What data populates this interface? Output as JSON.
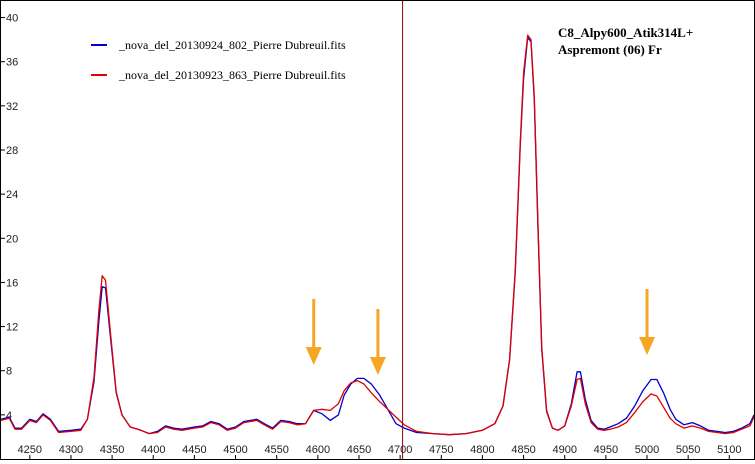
{
  "chart_data": {
    "type": "line",
    "title": "",
    "xlabel": "",
    "ylabel": "",
    "xlim": [
      4215,
      5130
    ],
    "ylim": [
      0,
      41.5
    ],
    "x_ticks": [
      4250,
      4300,
      4350,
      4400,
      4450,
      4500,
      4550,
      4600,
      4650,
      4700,
      4750,
      4800,
      4850,
      4900,
      4950,
      5000,
      5050,
      5100
    ],
    "y_ticks": [
      4,
      8,
      12,
      16,
      20,
      24,
      28,
      32,
      36,
      40
    ],
    "grid": false,
    "legend_position": "top-left",
    "annotation": [
      "C8_Alpy600_Atik314L+",
      "Aspremont (06)  Fr"
    ],
    "vertical_marker_x": 4703,
    "arrows_at_x": [
      4595,
      4673,
      5000
    ],
    "colors": {
      "arrow": "#f5a623",
      "marker": "#8b0000",
      "axis": "#000000"
    },
    "series": [
      {
        "name": "_nova_del_20130924_802_Pierre Dubreuil.fits",
        "color": "#0000cc",
        "x": [
          4215,
          4225,
          4232,
          4240,
          4250,
          4258,
          4266,
          4275,
          4285,
          4300,
          4312,
          4320,
          4328,
          4334,
          4338,
          4342,
          4348,
          4355,
          4362,
          4372,
          4385,
          4395,
          4405,
          4415,
          4425,
          4435,
          4450,
          4460,
          4470,
          4480,
          4490,
          4500,
          4510,
          4518,
          4526,
          4535,
          4545,
          4555,
          4565,
          4575,
          4585,
          4595,
          4605,
          4615,
          4625,
          4632,
          4640,
          4648,
          4656,
          4665,
          4675,
          4685,
          4695,
          4705,
          4720,
          4740,
          4760,
          4780,
          4800,
          4815,
          4825,
          4833,
          4840,
          4846,
          4850,
          4855,
          4859,
          4863,
          4867,
          4872,
          4878,
          4885,
          4892,
          4900,
          4908,
          4915,
          4919,
          4925,
          4932,
          4940,
          4948,
          4955,
          4965,
          4975,
          4985,
          4995,
          5005,
          5012,
          5020,
          5028,
          5035,
          5045,
          5055,
          5065,
          5075,
          5085,
          5095,
          5105,
          5115,
          5125,
          5130
        ],
        "y": [
          3.6,
          3.8,
          2.8,
          2.8,
          3.6,
          3.4,
          4.1,
          3.6,
          2.5,
          2.6,
          2.7,
          3.6,
          7.0,
          12.5,
          15.6,
          15.5,
          11.0,
          6.0,
          4.0,
          2.9,
          2.6,
          2.3,
          2.5,
          3.0,
          2.8,
          2.7,
          2.9,
          3.0,
          3.4,
          3.2,
          2.7,
          2.9,
          3.4,
          3.5,
          3.6,
          3.2,
          2.8,
          3.5,
          3.4,
          3.2,
          3.2,
          4.4,
          4.1,
          3.5,
          4.0,
          5.8,
          6.8,
          7.3,
          7.3,
          6.8,
          5.8,
          4.5,
          3.2,
          2.8,
          2.4,
          2.3,
          2.2,
          2.3,
          2.6,
          3.2,
          4.8,
          9.0,
          17.0,
          28.5,
          34.5,
          38.2,
          37.8,
          32.5,
          22.0,
          10.0,
          4.3,
          2.8,
          2.6,
          3.0,
          5.0,
          7.9,
          7.9,
          5.4,
          3.5,
          2.8,
          2.7,
          2.9,
          3.2,
          3.7,
          4.8,
          6.2,
          7.2,
          7.2,
          6.0,
          4.5,
          3.6,
          3.1,
          3.3,
          3.0,
          2.6,
          2.5,
          2.4,
          2.5,
          2.8,
          3.2,
          4.0
        ]
      },
      {
        "name": "_nova_del_20130923_863_Pierre Dubreuil.fits",
        "color": "#e00000",
        "x": [
          4215,
          4225,
          4232,
          4240,
          4250,
          4258,
          4266,
          4275,
          4285,
          4300,
          4312,
          4320,
          4328,
          4334,
          4338,
          4342,
          4348,
          4355,
          4362,
          4372,
          4385,
          4395,
          4405,
          4415,
          4425,
          4435,
          4450,
          4460,
          4470,
          4480,
          4490,
          4500,
          4510,
          4518,
          4526,
          4535,
          4545,
          4555,
          4565,
          4575,
          4585,
          4595,
          4605,
          4615,
          4625,
          4632,
          4640,
          4648,
          4656,
          4665,
          4675,
          4685,
          4695,
          4705,
          4720,
          4740,
          4760,
          4780,
          4800,
          4815,
          4825,
          4833,
          4840,
          4846,
          4850,
          4855,
          4859,
          4863,
          4867,
          4872,
          4878,
          4885,
          4892,
          4900,
          4908,
          4915,
          4919,
          4925,
          4932,
          4940,
          4948,
          4955,
          4965,
          4975,
          4985,
          4995,
          5005,
          5012,
          5020,
          5028,
          5035,
          5045,
          5055,
          5065,
          5075,
          5085,
          5095,
          5105,
          5115,
          5125,
          5130
        ],
        "y": [
          3.5,
          3.7,
          2.7,
          2.7,
          3.5,
          3.3,
          4.0,
          3.5,
          2.4,
          2.5,
          2.6,
          3.6,
          7.4,
          13.5,
          16.6,
          16.2,
          11.4,
          6.1,
          4.0,
          2.9,
          2.6,
          2.3,
          2.4,
          2.9,
          2.7,
          2.6,
          2.8,
          2.9,
          3.3,
          3.1,
          2.6,
          2.8,
          3.3,
          3.4,
          3.5,
          3.1,
          2.7,
          3.4,
          3.3,
          3.1,
          3.2,
          4.4,
          4.5,
          4.4,
          5.0,
          6.2,
          6.9,
          7.1,
          6.8,
          6.0,
          5.2,
          4.5,
          3.8,
          3.1,
          2.5,
          2.3,
          2.2,
          2.3,
          2.6,
          3.2,
          4.8,
          9.0,
          17.2,
          28.8,
          35.0,
          38.4,
          38.0,
          32.8,
          22.5,
          10.2,
          4.4,
          2.8,
          2.6,
          3.0,
          4.8,
          7.2,
          7.3,
          5.0,
          3.3,
          2.7,
          2.6,
          2.7,
          2.9,
          3.3,
          4.2,
          5.2,
          5.9,
          5.7,
          4.7,
          3.7,
          3.2,
          2.8,
          3.0,
          2.8,
          2.5,
          2.4,
          2.3,
          2.4,
          2.7,
          3.0,
          3.8
        ]
      }
    ]
  }
}
